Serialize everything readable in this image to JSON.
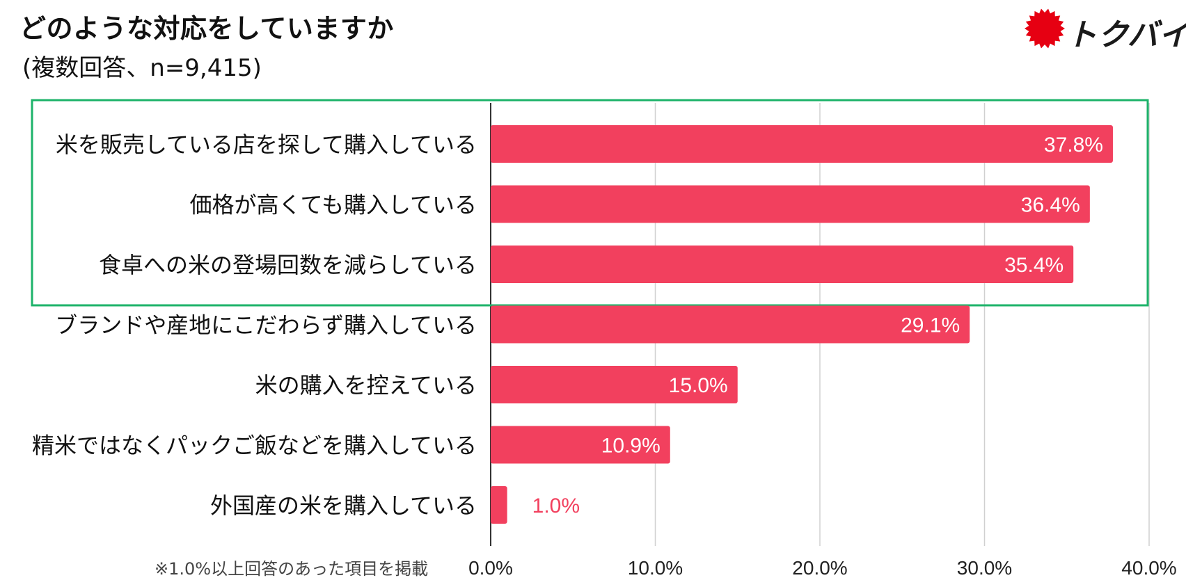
{
  "title": "どのような対応をしていますか",
  "subtitle": "(複数回答、n=9,415)",
  "logo": {
    "text": "トクバイ",
    "mark_color": "#e60012"
  },
  "footnote": "※1.0%以上回答のあった項目を掲載",
  "highlight": {
    "color": "#1db36a",
    "categories_count": 3
  },
  "chart_data": {
    "type": "bar",
    "orientation": "horizontal",
    "categories": [
      "米を販売している店を探して購入している",
      "価格が高くても購入している",
      "食卓への米の登場回数を減らしている",
      "ブランドや産地にこだわらず購入している",
      "米の購入を控えている",
      "精米ではなくパックご飯などを購入している",
      "外国産の米を購入している"
    ],
    "values": [
      37.8,
      36.4,
      35.4,
      29.1,
      15.0,
      10.9,
      1.0
    ],
    "data_labels": [
      "37.8%",
      "36.4%",
      "35.4%",
      "29.1%",
      "15.0%",
      "10.9%",
      "1.0%"
    ],
    "xlim": [
      0,
      40
    ],
    "xticks": [
      0,
      10,
      20,
      30,
      40
    ],
    "xtick_labels": [
      "0.0%",
      "10.0%",
      "20.0%",
      "30.0%",
      "40.0%"
    ],
    "grid": true,
    "bar_color": "#f2405e",
    "label_inside_color": "#ffffff",
    "label_outside_color": "#f2405e"
  }
}
